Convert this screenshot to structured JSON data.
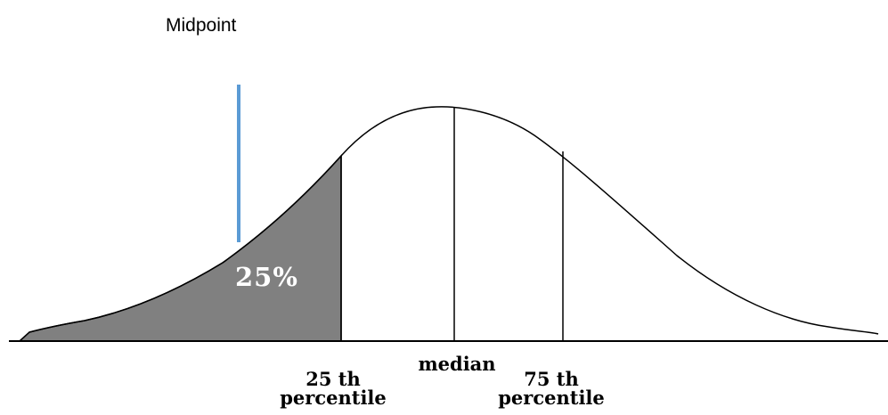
{
  "midpoint_label": "Midpoint",
  "shaded_label": "25%",
  "markers": {
    "p25_line1": "25 th",
    "p25_line2": "percentile",
    "median": "median",
    "p75_line1": "75 th",
    "p75_line2": "percentile"
  },
  "colors": {
    "shaded_area": "#808080",
    "midpoint_line": "#5b9bd5",
    "curve": "#000000"
  }
}
